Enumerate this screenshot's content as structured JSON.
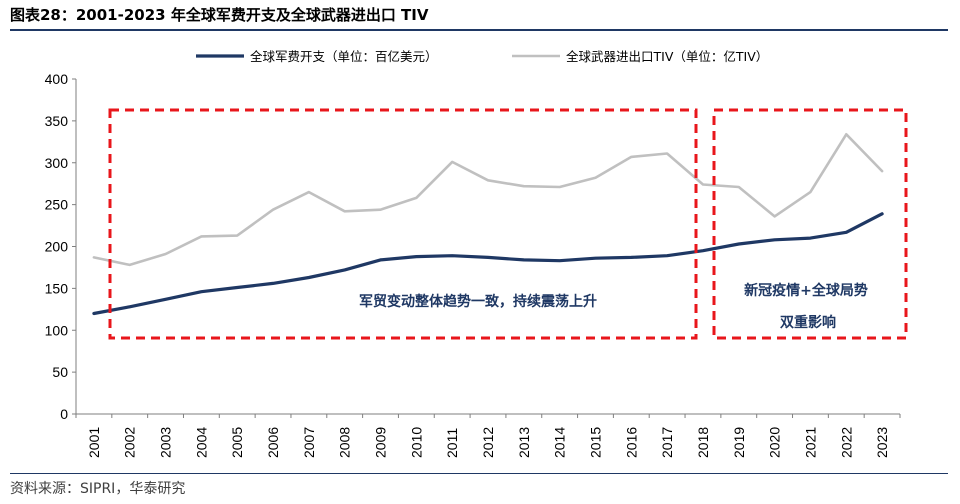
{
  "page": {
    "title": "图表28：2001-2023 年全球军费开支及全球武器进出口 TIV",
    "source": "资料来源：SIPRI，华泰研究"
  },
  "colors": {
    "military_spending": "#1f3864",
    "arms_tiv": "#c0c0c0",
    "annotation_box": "#e8161b",
    "annotation_text": "#1f3864",
    "rule": "#1f3864"
  },
  "chart_data": {
    "type": "line",
    "x": [
      "2001",
      "2002",
      "2003",
      "2004",
      "2005",
      "2006",
      "2007",
      "2008",
      "2009",
      "2010",
      "2011",
      "2012",
      "2013",
      "2014",
      "2015",
      "2016",
      "2017",
      "2018",
      "2019",
      "2020",
      "2021",
      "2022",
      "2023"
    ],
    "series": [
      {
        "name": "全球军费开支（单位：百亿美元）",
        "color": "#1f3864",
        "values": [
          120,
          128,
          137,
          146,
          151,
          156,
          163,
          172,
          184,
          188,
          189,
          187,
          184,
          183,
          186,
          187,
          189,
          195,
          203,
          208,
          210,
          217,
          239
        ]
      },
      {
        "name": "全球武器进出口TIV（单位：亿TIV）",
        "color": "#c0c0c0",
        "values": [
          187,
          178,
          191,
          212,
          213,
          244,
          265,
          242,
          244,
          258,
          301,
          279,
          272,
          271,
          282,
          307,
          311,
          274,
          271,
          236,
          265,
          334,
          290
        ]
      }
    ],
    "ylim": [
      0,
      400
    ],
    "yticks": [
      "0",
      "50",
      "100",
      "150",
      "200",
      "250",
      "300",
      "350",
      "400"
    ],
    "grid": false,
    "legend_position": "top",
    "annotations": [
      {
        "text": "军贸变动整体趋势一致，持续震荡上升",
        "x_range": [
          "2001",
          "2017"
        ]
      },
      {
        "text_line1": "新冠疫情+全球局势",
        "text_line2": "双重影响",
        "x_range": [
          "2019",
          "2023"
        ]
      }
    ]
  }
}
